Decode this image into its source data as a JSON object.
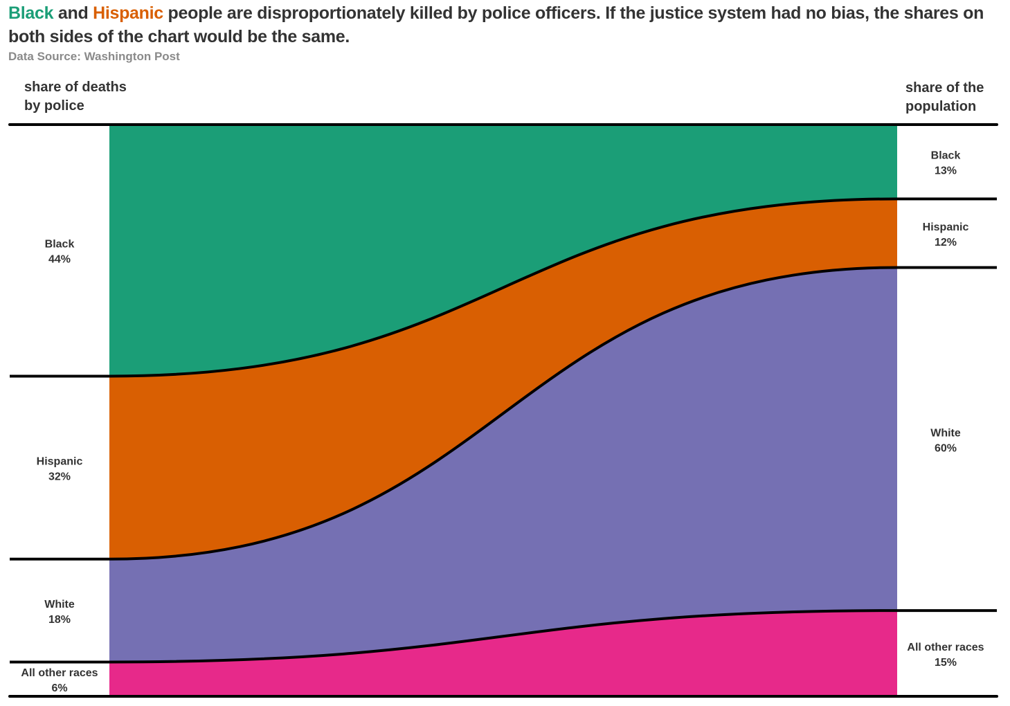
{
  "title": {
    "part1": "Black",
    "part2": " and ",
    "part3": "Hispanic",
    "part4": " people are disproportionately killed by police officers. If the justice system had no bias, the shares on both sides of the chart would be the same."
  },
  "source": "Data Source: Washington Post",
  "left_header": {
    "line1": "share of deaths",
    "line2": "by police"
  },
  "right_header": {
    "line1": "share of the",
    "line2": "population"
  },
  "colors": {
    "Black": "#1b9e77",
    "Hispanic": "#d95f02",
    "White": "#7570b3",
    "All other races": "#e7298a",
    "lines": "#000000"
  },
  "chart_data": {
    "type": "area",
    "title": "Black and Hispanic people are disproportionately killed by police officers. If the justice system had no bias, the shares on both sides of the chart would be the same.",
    "subtitle": "Data Source: Washington Post",
    "left_axis_label": "share of deaths by police",
    "right_axis_label": "share of the population",
    "categories": [
      "Black",
      "Hispanic",
      "White",
      "All other races"
    ],
    "series": [
      {
        "name": "share of deaths by police",
        "values": [
          44,
          32,
          18,
          6
        ],
        "labels": [
          "44%",
          "32%",
          "18%",
          "6%"
        ]
      },
      {
        "name": "share of the population",
        "values": [
          13,
          12,
          60,
          15
        ],
        "labels": [
          "13%",
          "12%",
          "60%",
          "15%"
        ]
      }
    ],
    "ylim": [
      0,
      100
    ],
    "grid": false,
    "legend": "none"
  }
}
